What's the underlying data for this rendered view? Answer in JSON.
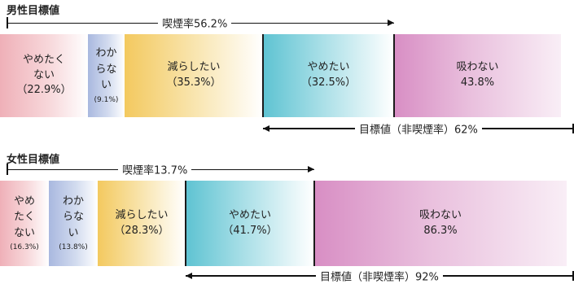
{
  "colors": {
    "not_want_to_quit": "#efb0b8",
    "dont_know": "#a9b8df",
    "want_to_reduce": "#f3c95f",
    "want_to_quit": "#5ec3d2",
    "non_smoker": "#d88ec4"
  },
  "chart_data": [
    {
      "type": "bar",
      "title": "男性目標値",
      "smoking_rate_label": "喫煙率56.2%",
      "target_label": "目標値（非喫煙率）62%",
      "segments": [
        {
          "label": "やめたく\nない",
          "value_label": "（22.9%）",
          "value": 22.9,
          "color_key": "not_want_to_quit"
        },
        {
          "label": "わか\nらな\nい",
          "value_label": "(9.1%)",
          "value": 9.1,
          "color_key": "dont_know"
        },
        {
          "label": "減らしたい",
          "value_label": "（35.3%）",
          "value": 35.3,
          "color_key": "want_to_reduce"
        },
        {
          "label": "やめたい",
          "value_label": "（32.5%）",
          "value": 32.5,
          "color_key": "want_to_quit"
        },
        {
          "label": "吸わない",
          "value_label": "43.8%",
          "value": 43.8,
          "color_key": "non_smoker"
        }
      ]
    },
    {
      "type": "bar",
      "title": "女性目標値",
      "smoking_rate_label": "喫煙率13.7%",
      "target_label": "目標値（非喫煙率）92%",
      "segments": [
        {
          "label": "やめ\nたく\nない",
          "value_label": "(16.3%)",
          "value": 16.3,
          "color_key": "not_want_to_quit"
        },
        {
          "label": "わか\nらな\nい",
          "value_label": "(13.8%)",
          "value": 13.8,
          "color_key": "dont_know"
        },
        {
          "label": "減らしたい",
          "value_label": "（28.3%）",
          "value": 28.3,
          "color_key": "want_to_reduce"
        },
        {
          "label": "やめたい",
          "value_label": "（41.7%）",
          "value": 41.7,
          "color_key": "want_to_quit"
        },
        {
          "label": "吸わない",
          "value_label": "86.3%",
          "value": 86.3,
          "color_key": "non_smoker"
        }
      ]
    }
  ]
}
